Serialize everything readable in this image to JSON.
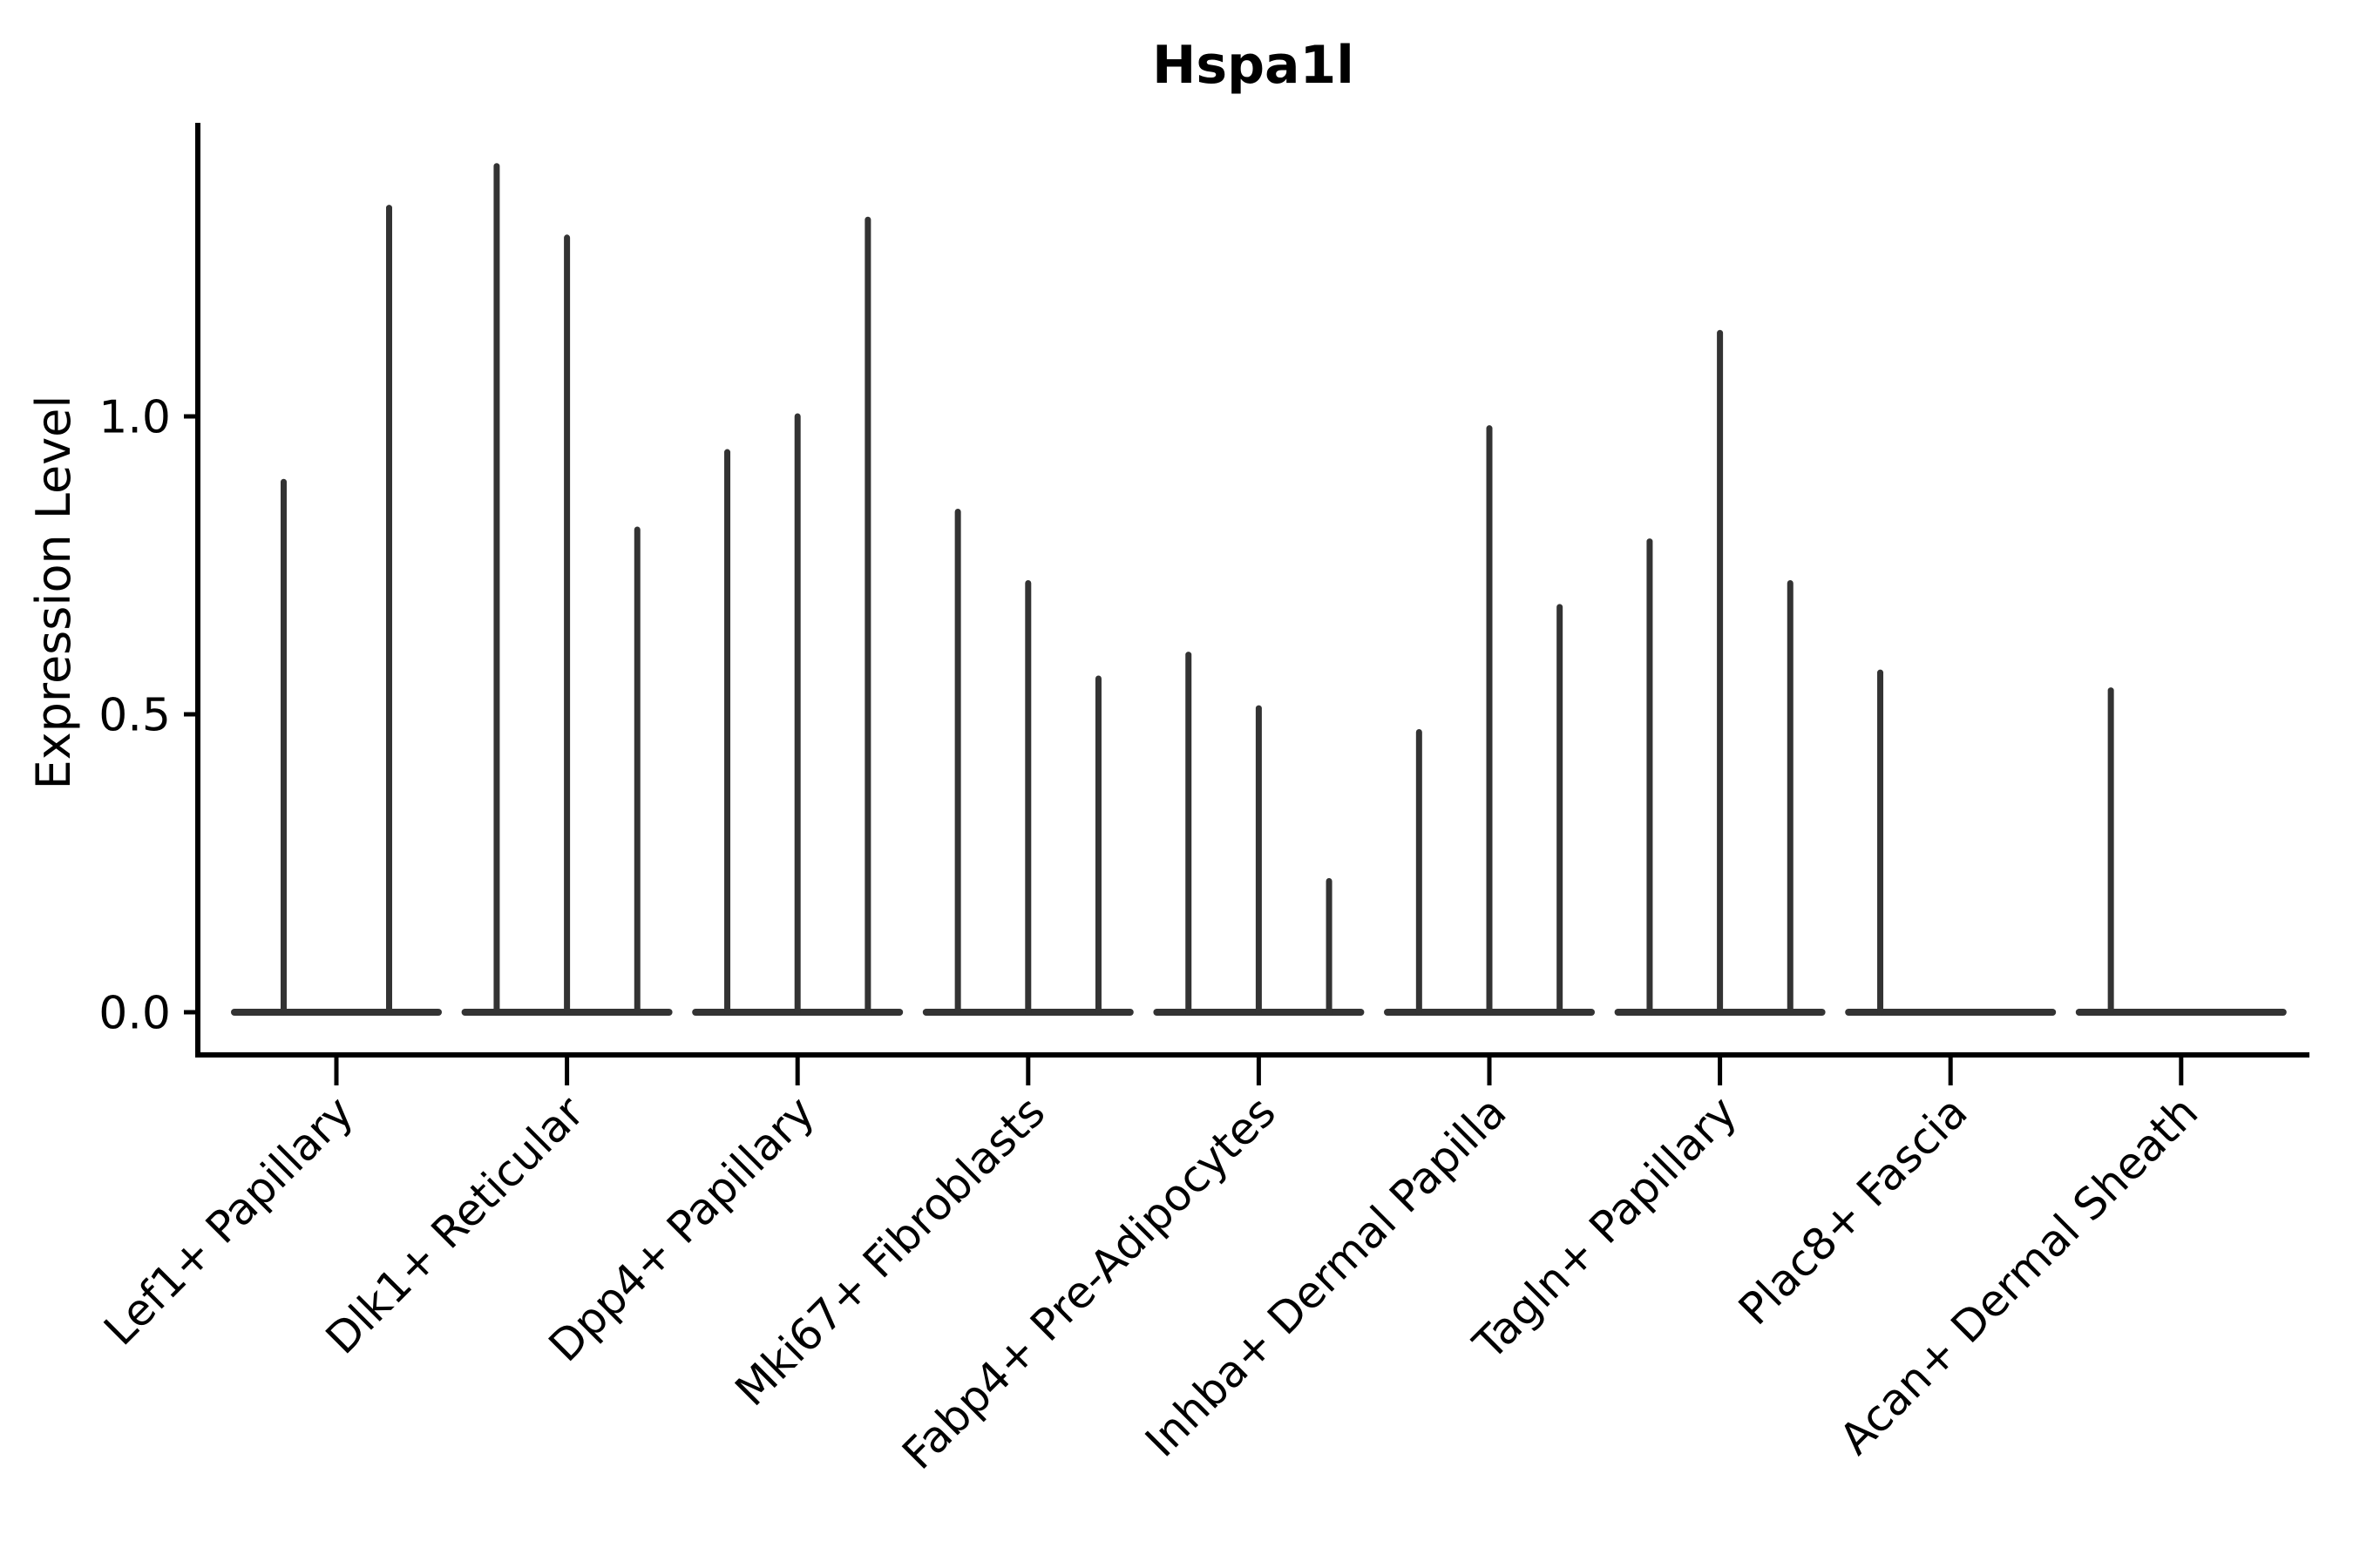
{
  "figure": {
    "title": "Hspa1l"
  },
  "chart_data": {
    "type": "violin",
    "title": "Hspa1l",
    "xlabel": "",
    "ylabel": "Expression Level",
    "ylim": [
      0,
      1.49
    ],
    "grid": false,
    "legend": null,
    "yticks": {
      "labels": [
        "0.0",
        "0.5",
        "1.0"
      ],
      "values": [
        0.0,
        0.5,
        1.0
      ]
    },
    "categories": [
      "Lef1+ Papillary",
      "Dlk1+ Reticular",
      "Dpp4+ Papillary",
      "Mki67+ Fibroblasts",
      "Fabp4+ Pre-Adipocytes",
      "Inhba+ Dermal Papilla",
      "Tagln+ Papillary",
      "Plac8+ Fascia",
      "Acan+ Dermal Sheath"
    ],
    "series": [
      {
        "category": "Lef1+ Papillary",
        "violin_maxima": [
          0.89,
          1.35
        ]
      },
      {
        "category": "Dlk1+ Reticular",
        "violin_maxima": [
          1.42,
          1.3,
          0.81
        ]
      },
      {
        "category": "Dpp4+ Papillary",
        "violin_maxima": [
          0.94,
          1.0,
          1.33
        ]
      },
      {
        "category": "Mki67+ Fibroblasts",
        "violin_maxima": [
          0.84,
          0.72,
          0.56
        ]
      },
      {
        "category": "Fabp4+ Pre-Adipocytes",
        "violin_maxima": [
          0.6,
          0.51,
          0.22
        ]
      },
      {
        "category": "Inhba+ Dermal Papilla",
        "violin_maxima": [
          0.47,
          0.98,
          0.68
        ]
      },
      {
        "category": "Tagln+ Papillary",
        "violin_maxima": [
          0.79,
          1.14,
          0.72
        ]
      },
      {
        "category": "Plac8+ Fascia",
        "violin_maxima": [
          0.57,
          0.0,
          0.0
        ]
      },
      {
        "category": "Acan+ Dermal Sheath",
        "violin_maxima": [
          0.54,
          0.0,
          0.0
        ]
      }
    ],
    "style": {
      "violin_color": "#333333",
      "axis_color": "#000000",
      "background": "#ffffff"
    }
  }
}
